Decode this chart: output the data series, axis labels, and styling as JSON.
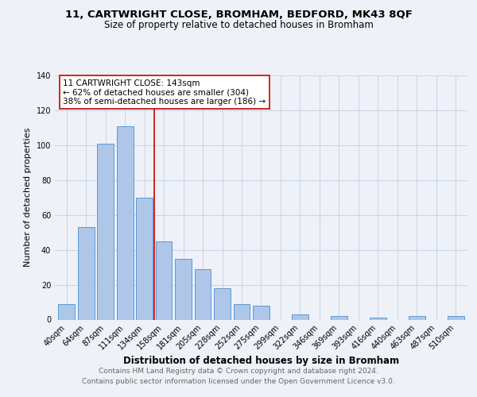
{
  "title": "11, CARTWRIGHT CLOSE, BROMHAM, BEDFORD, MK43 8QF",
  "subtitle": "Size of property relative to detached houses in Bromham",
  "xlabel": "Distribution of detached houses by size in Bromham",
  "ylabel": "Number of detached properties",
  "bar_labels": [
    "40sqm",
    "64sqm",
    "87sqm",
    "111sqm",
    "134sqm",
    "158sqm",
    "181sqm",
    "205sqm",
    "228sqm",
    "252sqm",
    "275sqm",
    "299sqm",
    "322sqm",
    "346sqm",
    "369sqm",
    "393sqm",
    "416sqm",
    "440sqm",
    "463sqm",
    "487sqm",
    "510sqm"
  ],
  "bar_values": [
    9,
    53,
    101,
    111,
    70,
    45,
    35,
    29,
    18,
    9,
    8,
    0,
    3,
    0,
    2,
    0,
    1,
    0,
    2,
    0,
    2
  ],
  "bar_color": "#aec6e8",
  "bar_edge_color": "#5b9bd5",
  "vline_x": 4.5,
  "vline_color": "#cc0000",
  "annotation_line1": "11 CARTWRIGHT CLOSE: 143sqm",
  "annotation_line2": "← 62% of detached houses are smaller (304)",
  "annotation_line3": "38% of semi-detached houses are larger (186) →",
  "annotation_box_color": "#ffffff",
  "annotation_box_edge": "#cc0000",
  "ylim": [
    0,
    140
  ],
  "yticks": [
    0,
    20,
    40,
    60,
    80,
    100,
    120,
    140
  ],
  "footer1": "Contains HM Land Registry data © Crown copyright and database right 2024.",
  "footer2": "Contains public sector information licensed under the Open Government Licence v3.0.",
  "bg_color": "#eef2f8",
  "plot_bg_color": "#eef2f8",
  "title_fontsize": 9.5,
  "subtitle_fontsize": 8.5,
  "axis_label_fontsize": 8,
  "tick_fontsize": 7,
  "annotation_fontsize": 7.5,
  "footer_fontsize": 6.5
}
